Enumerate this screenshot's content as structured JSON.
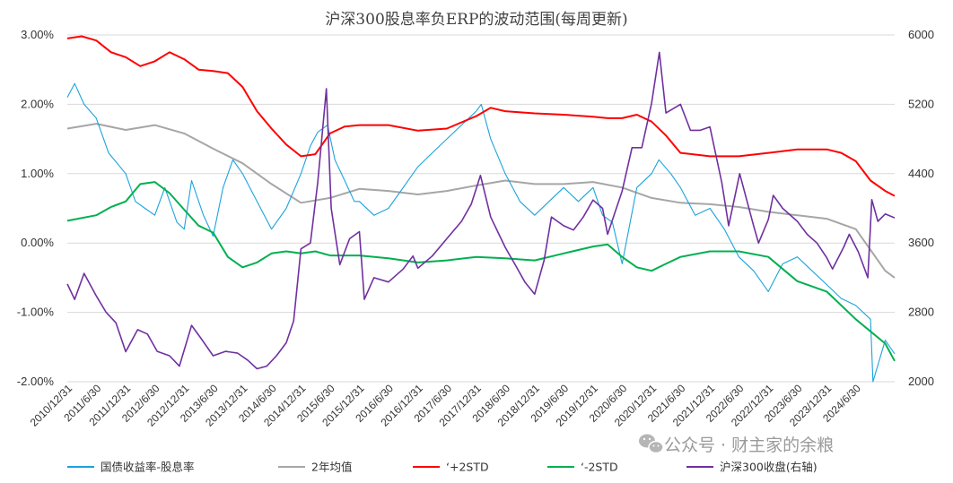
{
  "chart_data": {
    "type": "line",
    "title": "沪深300股息率负ERP的波动范围(每周更新)",
    "watermark": "公众号 · 财主家的余粮",
    "y_left": {
      "min": -0.02,
      "max": 0.03,
      "ticks": [
        "3.00%",
        "2.00%",
        "1.00%",
        "0.00%",
        "-1.00%",
        "-2.00%"
      ]
    },
    "y_right": {
      "min": 2000,
      "max": 6000,
      "ticks": [
        "6000",
        "5200",
        "4400",
        "3600",
        "2800",
        "2000"
      ]
    },
    "x_range": [
      "2010-12-31",
      "2025-02-28"
    ],
    "x_ticks": [
      "2010/12/31",
      "2011/6/30",
      "2011/12/31",
      "2012/6/30",
      "2012/12/31",
      "2013/6/30",
      "2013/12/31",
      "2014/6/30",
      "2014/12/31",
      "2015/6/30",
      "2015/12/31",
      "2016/6/30",
      "2016/12/31",
      "2017/6/30",
      "2017/12/31",
      "2018/6/30",
      "2018/12/31",
      "2019/6/30",
      "2019/12/31",
      "2020/6/30",
      "2020/12/31",
      "2021/6/30",
      "2021/12/31",
      "2022/6/30",
      "2022/12/31",
      "2023/6/30",
      "2023/12/31",
      "2024/6/30"
    ],
    "colors": {
      "spread": "#1ca3dc",
      "mean": "#a6a6a6",
      "plus2": "#ff0000",
      "minus2": "#00b050",
      "index": "#7030a0"
    },
    "series": [
      {
        "key": "spread",
        "name": "国债收益率-股息率",
        "axis": "left",
        "x": [
          "2010-12-31",
          "2011-02-15",
          "2011-04-15",
          "2011-06-30",
          "2011-09-15",
          "2011-12-31",
          "2012-03-01",
          "2012-04-30",
          "2012-06-30",
          "2012-09-01",
          "2012-11-15",
          "2012-12-31",
          "2013-02-15",
          "2013-04-30",
          "2013-06-30",
          "2013-08-31",
          "2013-10-31",
          "2013-12-31",
          "2014-03-31",
          "2014-06-30",
          "2014-09-30",
          "2014-12-31",
          "2015-02-28",
          "2015-04-15",
          "2015-06-15",
          "2015-07-31",
          "2015-09-30",
          "2015-11-30",
          "2015-12-31",
          "2016-03-31",
          "2016-06-30",
          "2016-09-30",
          "2016-12-31",
          "2017-03-31",
          "2017-06-30",
          "2017-09-30",
          "2017-12-31",
          "2018-01-31",
          "2018-03-31",
          "2018-06-30",
          "2018-09-30",
          "2018-12-31",
          "2019-03-31",
          "2019-06-30",
          "2019-09-30",
          "2019-12-31",
          "2020-02-29",
          "2020-04-30",
          "2020-06-30",
          "2020-09-30",
          "2020-12-31",
          "2021-02-15",
          "2021-04-30",
          "2021-06-30",
          "2021-09-30",
          "2021-12-31",
          "2022-03-31",
          "2022-06-30",
          "2022-09-30",
          "2022-12-31",
          "2023-03-31",
          "2023-06-30",
          "2023-09-30",
          "2023-12-31",
          "2024-03-31",
          "2024-06-30",
          "2024-09-30",
          "2024-10-15",
          "2024-12-31",
          "2025-02-28"
        ],
        "values": [
          0.021,
          0.023,
          0.02,
          0.018,
          0.013,
          0.01,
          0.006,
          0.005,
          0.004,
          0.008,
          0.003,
          0.002,
          0.009,
          0.004,
          0.001,
          0.008,
          0.012,
          0.01,
          0.006,
          0.002,
          0.005,
          0.01,
          0.014,
          0.016,
          0.017,
          0.012,
          0.009,
          0.006,
          0.006,
          0.004,
          0.005,
          0.008,
          0.011,
          0.013,
          0.015,
          0.017,
          0.019,
          0.02,
          0.015,
          0.01,
          0.006,
          0.004,
          0.006,
          0.008,
          0.006,
          0.008,
          0.004,
          0.003,
          -0.003,
          0.008,
          0.01,
          0.012,
          0.01,
          0.008,
          0.004,
          0.005,
          0.002,
          -0.002,
          -0.004,
          -0.007,
          -0.003,
          -0.002,
          -0.004,
          -0.006,
          -0.008,
          -0.009,
          -0.011,
          -0.02,
          -0.014,
          -0.016
        ]
      },
      {
        "key": "mean",
        "name": "2年均值",
        "axis": "left",
        "x": [
          "2010-12-31",
          "2011-06-30",
          "2011-12-31",
          "2012-06-30",
          "2012-12-31",
          "2013-06-30",
          "2013-12-31",
          "2014-06-30",
          "2014-12-31",
          "2015-06-30",
          "2015-12-31",
          "2016-06-30",
          "2016-12-31",
          "2017-06-30",
          "2017-12-31",
          "2018-06-30",
          "2018-12-31",
          "2019-06-30",
          "2019-12-31",
          "2020-06-30",
          "2020-12-31",
          "2021-06-30",
          "2021-12-31",
          "2022-06-30",
          "2022-12-31",
          "2023-06-30",
          "2023-12-31",
          "2024-06-30",
          "2024-12-31",
          "2025-02-28"
        ],
        "values": [
          0.0165,
          0.0172,
          0.0163,
          0.017,
          0.0158,
          0.0136,
          0.0115,
          0.0085,
          0.0058,
          0.0065,
          0.0078,
          0.0075,
          0.007,
          0.0075,
          0.0083,
          0.009,
          0.0085,
          0.0085,
          0.0088,
          0.008,
          0.0065,
          0.0058,
          0.0056,
          0.0052,
          0.0045,
          0.004,
          0.0035,
          0.002,
          -0.004,
          -0.005
        ]
      },
      {
        "key": "plus2",
        "name": "‘+2STD",
        "axis": "left",
        "x": [
          "2010-12-31",
          "2011-03-31",
          "2011-06-30",
          "2011-09-30",
          "2011-12-31",
          "2012-03-31",
          "2012-06-30",
          "2012-09-30",
          "2012-12-31",
          "2013-03-31",
          "2013-06-30",
          "2013-09-30",
          "2013-12-31",
          "2014-03-31",
          "2014-06-30",
          "2014-09-30",
          "2014-12-31",
          "2015-03-31",
          "2015-06-30",
          "2015-09-30",
          "2015-12-31",
          "2016-06-30",
          "2016-12-31",
          "2017-06-30",
          "2017-12-31",
          "2018-03-31",
          "2018-06-30",
          "2018-12-31",
          "2019-06-30",
          "2019-12-31",
          "2020-03-31",
          "2020-06-30",
          "2020-09-30",
          "2020-12-31",
          "2021-03-31",
          "2021-06-30",
          "2021-12-31",
          "2022-06-30",
          "2022-12-31",
          "2023-06-30",
          "2023-12-31",
          "2024-03-31",
          "2024-06-30",
          "2024-09-30",
          "2024-12-31",
          "2025-02-28"
        ],
        "values": [
          0.0295,
          0.0298,
          0.0292,
          0.0275,
          0.0268,
          0.0255,
          0.0262,
          0.0275,
          0.0265,
          0.025,
          0.0248,
          0.0245,
          0.0225,
          0.019,
          0.0165,
          0.0142,
          0.0125,
          0.0128,
          0.0158,
          0.0168,
          0.017,
          0.017,
          0.0162,
          0.0165,
          0.0183,
          0.0195,
          0.019,
          0.0187,
          0.0185,
          0.0182,
          0.018,
          0.018,
          0.0185,
          0.0175,
          0.0155,
          0.013,
          0.0125,
          0.0125,
          0.013,
          0.0135,
          0.0135,
          0.013,
          0.0118,
          0.009,
          0.0075,
          0.0068
        ]
      },
      {
        "key": "minus2",
        "name": "‘-2STD",
        "axis": "left",
        "x": [
          "2010-12-31",
          "2011-06-30",
          "2011-09-30",
          "2011-12-31",
          "2012-03-31",
          "2012-06-30",
          "2012-09-30",
          "2012-12-31",
          "2013-03-31",
          "2013-06-30",
          "2013-09-30",
          "2013-12-31",
          "2014-03-31",
          "2014-06-30",
          "2014-09-30",
          "2014-12-31",
          "2015-03-31",
          "2015-06-30",
          "2015-09-30",
          "2015-12-31",
          "2016-06-30",
          "2016-12-31",
          "2017-06-30",
          "2017-12-31",
          "2018-06-30",
          "2018-12-31",
          "2019-06-30",
          "2019-12-31",
          "2020-03-31",
          "2020-06-30",
          "2020-09-30",
          "2020-12-31",
          "2021-03-31",
          "2021-06-30",
          "2021-12-31",
          "2022-06-30",
          "2022-12-31",
          "2023-06-30",
          "2023-12-31",
          "2024-06-30",
          "2024-12-31",
          "2025-02-28"
        ],
        "values": [
          0.0032,
          0.004,
          0.0052,
          0.006,
          0.0085,
          0.0088,
          0.0072,
          0.0048,
          0.0025,
          0.0015,
          -0.002,
          -0.0035,
          -0.0028,
          -0.0015,
          -0.0012,
          -0.0015,
          -0.0012,
          -0.0018,
          -0.0018,
          -0.0018,
          -0.0022,
          -0.0028,
          -0.0025,
          -0.002,
          -0.0022,
          -0.0025,
          -0.0015,
          -0.0005,
          -0.0002,
          -0.002,
          -0.0035,
          -0.004,
          -0.003,
          -0.002,
          -0.0012,
          -0.0012,
          -0.002,
          -0.0055,
          -0.007,
          -0.011,
          -0.0145,
          -0.017
        ]
      },
      {
        "key": "index",
        "name": "沪深300收盘(右轴)",
        "axis": "right",
        "x": [
          "2010-12-31",
          "2011-02-15",
          "2011-04-15",
          "2011-06-30",
          "2011-08-31",
          "2011-10-31",
          "2011-12-31",
          "2012-03-15",
          "2012-05-15",
          "2012-07-15",
          "2012-09-30",
          "2012-12-01",
          "2013-02-15",
          "2013-04-15",
          "2013-06-30",
          "2013-09-15",
          "2013-11-30",
          "2014-01-31",
          "2014-03-31",
          "2014-05-31",
          "2014-07-31",
          "2014-09-30",
          "2014-11-15",
          "2014-12-31",
          "2015-02-28",
          "2015-04-15",
          "2015-06-08",
          "2015-07-08",
          "2015-08-31",
          "2015-10-31",
          "2015-12-31",
          "2016-01-31",
          "2016-03-31",
          "2016-06-30",
          "2016-09-30",
          "2016-11-30",
          "2016-12-31",
          "2017-03-31",
          "2017-06-30",
          "2017-09-30",
          "2017-11-30",
          "2018-01-26",
          "2018-03-31",
          "2018-06-30",
          "2018-08-31",
          "2018-10-31",
          "2018-12-31",
          "2019-02-28",
          "2019-04-15",
          "2019-06-30",
          "2019-08-31",
          "2019-10-31",
          "2019-12-31",
          "2020-02-29",
          "2020-03-31",
          "2020-06-30",
          "2020-08-31",
          "2020-10-31",
          "2020-12-31",
          "2021-02-18",
          "2021-03-31",
          "2021-06-30",
          "2021-08-31",
          "2021-10-31",
          "2021-12-31",
          "2022-03-15",
          "2022-04-27",
          "2022-07-05",
          "2022-09-30",
          "2022-10-31",
          "2022-12-31",
          "2023-01-31",
          "2023-03-31",
          "2023-06-30",
          "2023-08-31",
          "2023-10-31",
          "2023-12-31",
          "2024-02-05",
          "2024-04-15",
          "2024-05-20",
          "2024-07-15",
          "2024-09-13",
          "2024-10-08",
          "2024-11-15",
          "2024-12-31",
          "2025-02-28"
        ],
        "values": [
          3128,
          2950,
          3250,
          2990,
          2800,
          2680,
          2346,
          2600,
          2550,
          2350,
          2300,
          2180,
          2650,
          2500,
          2300,
          2350,
          2330,
          2250,
          2150,
          2180,
          2300,
          2450,
          2700,
          3533,
          3600,
          4300,
          5380,
          4000,
          3350,
          3650,
          3731,
          2950,
          3200,
          3150,
          3300,
          3450,
          3310,
          3450,
          3650,
          3850,
          4050,
          4380,
          3900,
          3550,
          3350,
          3150,
          3010,
          3400,
          3900,
          3800,
          3750,
          3900,
          4096,
          4000,
          3700,
          4200,
          4700,
          4700,
          5211,
          5800,
          5100,
          5200,
          4900,
          4900,
          4940,
          4300,
          3800,
          4400,
          3800,
          3600,
          3871,
          4150,
          4000,
          3850,
          3700,
          3600,
          3431,
          3300,
          3550,
          3700,
          3500,
          3200,
          4100,
          3850,
          3935,
          3890
        ]
      }
    ]
  }
}
